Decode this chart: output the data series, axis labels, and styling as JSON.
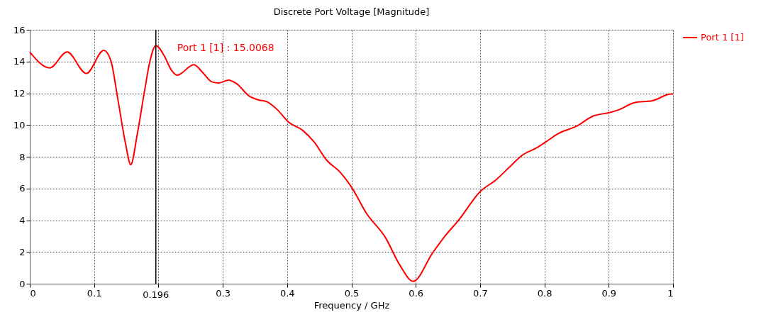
{
  "chart_data": {
    "type": "line",
    "title": "Discrete Port Voltage [Magnitude]",
    "xlabel": "Frequency / GHz",
    "x": [
      0,
      0.031,
      0.058,
      0.088,
      0.115,
      0.126,
      0.137,
      0.149,
      0.157,
      0.167,
      0.178,
      0.187,
      0.196,
      0.209,
      0.22,
      0.229,
      0.255,
      0.27,
      0.283,
      0.294,
      0.309,
      0.321,
      0.341,
      0.354,
      0.369,
      0.384,
      0.402,
      0.424,
      0.442,
      0.461,
      0.483,
      0.501,
      0.523,
      0.553,
      0.575,
      0.596,
      0.626,
      0.645,
      0.667,
      0.7,
      0.725,
      0.748,
      0.766,
      0.788,
      0.802,
      0.821,
      0.85,
      0.876,
      0.902,
      0.917,
      0.94,
      0.968,
      0.997,
      1
    ],
    "series": [
      {
        "name": "Port 1 [1]",
        "color": "#ff0000",
        "values": [
          14.6,
          13.6,
          14.6,
          13.25,
          14.7,
          14.06,
          11.6,
          8.8,
          7.5,
          9.4,
          12.05,
          14.06,
          15.0068,
          14.36,
          13.47,
          13.14,
          13.8,
          13.25,
          12.72,
          12.65,
          12.83,
          12.62,
          11.83,
          11.6,
          11.46,
          11.0,
          10.19,
          9.67,
          8.93,
          7.81,
          7.0,
          6.03,
          4.46,
          2.9,
          1.19,
          0.15,
          1.93,
          2.98,
          4.02,
          5.8,
          6.55,
          7.44,
          8.11,
          8.56,
          8.93,
          9.45,
          9.93,
          10.57,
          10.79,
          10.98,
          11.41,
          11.53,
          11.95,
          11.95
        ]
      }
    ],
    "xlim": [
      0,
      1
    ],
    "ylim": [
      0,
      16
    ],
    "xticks": [
      0,
      0.1,
      {
        "value": 0.2,
        "label": null
      },
      0.3,
      0.4,
      0.5,
      0.6,
      0.7,
      0.8,
      0.9,
      1
    ],
    "yticks": [
      0,
      2,
      4,
      6,
      8,
      10,
      12,
      14,
      16
    ],
    "ref_lines": [
      {
        "axis": "x",
        "value": 0.196,
        "label": "0.196",
        "color": "#000000"
      }
    ],
    "annotations": [
      {
        "text": "Port 1 [1] : 15.0068",
        "x": 0.196,
        "y": 15.0068
      }
    ],
    "grid": true,
    "legend": "right",
    "line_style": "solid",
    "marker": "none"
  }
}
